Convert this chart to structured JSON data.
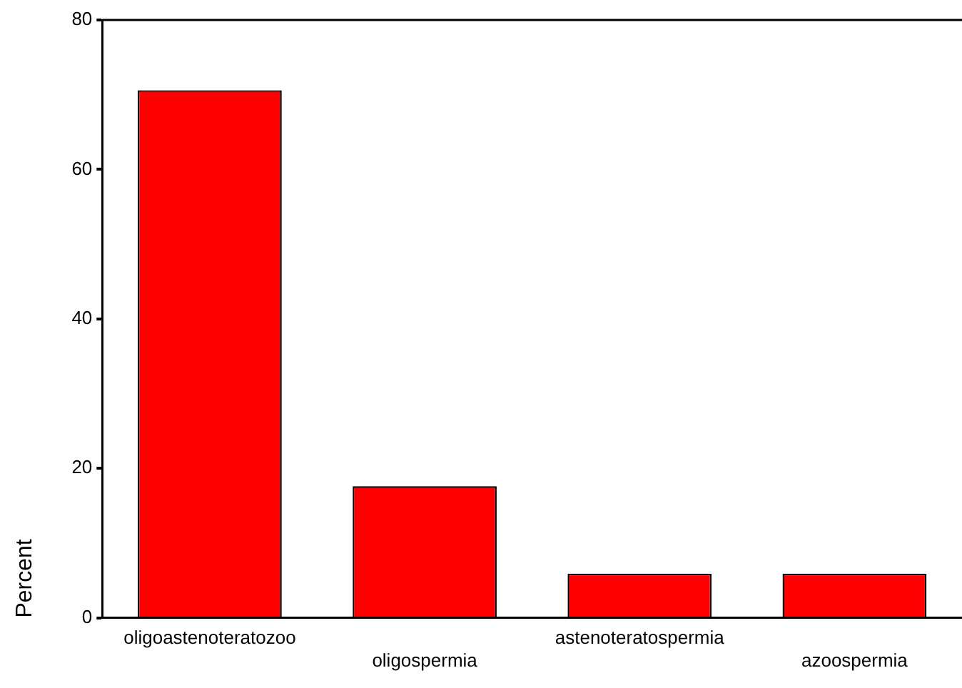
{
  "chart_data": {
    "type": "bar",
    "ylabel": "Percent",
    "categories": [
      "oligoastenoteratozoo",
      "oligospermia",
      "astenoteratospermia",
      "azoospermia"
    ],
    "values": [
      70.6,
      17.6,
      5.9,
      5.9
    ],
    "color": "#ff0000",
    "ylim": [
      0,
      80
    ],
    "yticks": [
      0,
      20,
      40,
      60,
      80
    ],
    "grid": false,
    "legend": false
  }
}
